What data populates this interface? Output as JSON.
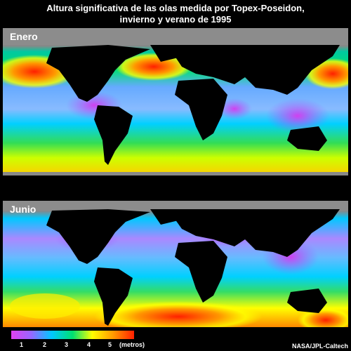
{
  "title": {
    "line1": "Altura significativa de las olas medida por Topex-Poseidon,",
    "line2": "invierno y verano de 1995"
  },
  "panels": [
    {
      "label": "Enero"
    },
    {
      "label": "Junio"
    }
  ],
  "legend": {
    "ticks": [
      "1",
      "2",
      "3",
      "4",
      "5"
    ],
    "units": "(metros)",
    "colors": [
      "#e040f0",
      "#9966ff",
      "#00c8ff",
      "#00e070",
      "#ffff00",
      "#ff9900",
      "#ff2000"
    ]
  },
  "credit": "NASA/JPL-Caltech"
}
